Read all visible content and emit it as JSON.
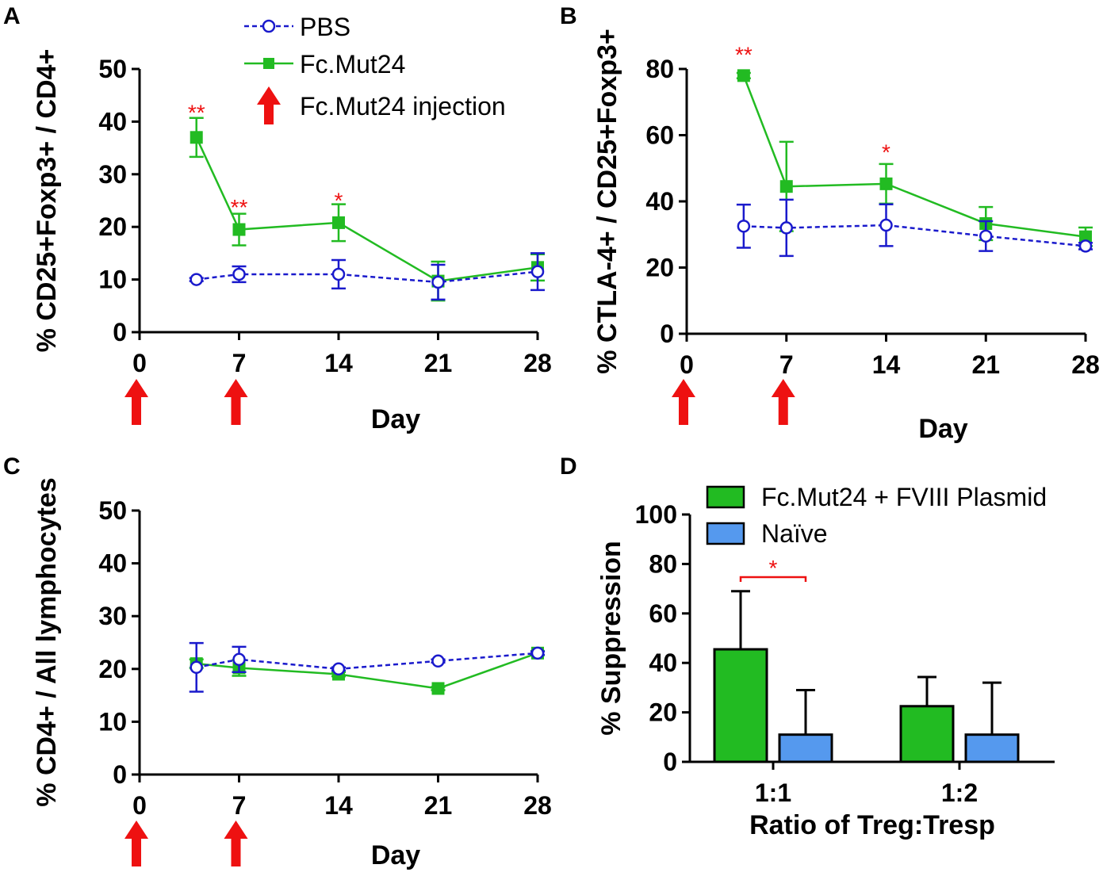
{
  "colors": {
    "pbs": "#1a1acc",
    "fc": "#22bb22",
    "arrow": "#ee1111",
    "sig": "#ee1111",
    "bar_naive": "#5599ee",
    "bar_fc": "#22bb22"
  },
  "legend_top": {
    "pbs": "PBS",
    "fc": "Fc.Mut24",
    "arrow": "Fc.Mut24 injection"
  },
  "legend_d": {
    "fc": "Fc.Mut24 + FVIII Plasmid",
    "naive": "Naïve"
  },
  "chart_data": [
    {
      "panel": "A",
      "type": "line",
      "xlabel": "Day",
      "ylabel": "% CD25+Foxp3+ / CD4+",
      "xticks": [
        0,
        7,
        14,
        21,
        28
      ],
      "yticks": [
        0,
        10,
        20,
        30,
        40,
        50
      ],
      "xlim": [
        0,
        28
      ],
      "ylim": [
        0,
        50
      ],
      "injections": [
        0,
        7
      ],
      "series": [
        {
          "name": "PBS",
          "x": [
            4,
            7,
            14,
            21,
            28
          ],
          "y": [
            10,
            11,
            11,
            9.5,
            11.5
          ],
          "err": [
            0.3,
            1.5,
            2.7,
            3.3,
            3.5
          ]
        },
        {
          "name": "Fc.Mut24",
          "x": [
            4,
            7,
            14,
            21,
            28
          ],
          "y": [
            37,
            19.5,
            20.8,
            9.7,
            12.3
          ],
          "err": [
            3.7,
            3.0,
            3.5,
            3.7,
            2.5
          ]
        }
      ],
      "significance": [
        {
          "x": 4,
          "label": "**",
          "y": 41.5
        },
        {
          "x": 7,
          "label": "**",
          "y": 23.5
        },
        {
          "x": 14,
          "label": "*",
          "y": 24.8
        }
      ]
    },
    {
      "panel": "B",
      "type": "line",
      "xlabel": "Day",
      "ylabel": "% CTLA-4+ / CD25+Foxp3+",
      "xticks": [
        0,
        7,
        14,
        21,
        28
      ],
      "yticks": [
        0,
        20,
        40,
        60,
        80
      ],
      "xlim": [
        0,
        28
      ],
      "ylim": [
        0,
        80
      ],
      "injections": [
        0,
        7
      ],
      "series": [
        {
          "name": "PBS",
          "x": [
            4,
            7,
            14,
            21,
            28
          ],
          "y": [
            32.5,
            32,
            32.8,
            29.5,
            26.5
          ],
          "err": [
            6.5,
            8.5,
            6.3,
            4.5,
            1.0
          ]
        },
        {
          "name": "Fc.Mut24",
          "x": [
            4,
            7,
            14,
            21,
            28
          ],
          "y": [
            78,
            44.5,
            45.3,
            33.3,
            29.3
          ],
          "err": [
            0.8,
            13.5,
            6.0,
            5.0,
            2.8
          ]
        }
      ],
      "significance": [
        {
          "x": 4,
          "label": "**",
          "y": 84
        },
        {
          "x": 14,
          "label": "*",
          "y": 54.5
        }
      ]
    },
    {
      "panel": "C",
      "type": "line",
      "xlabel": "Day",
      "ylabel": "% CD4+ / All lymphocytes",
      "xticks": [
        0,
        7,
        14,
        21,
        28
      ],
      "yticks": [
        0,
        10,
        20,
        30,
        40,
        50
      ],
      "xlim": [
        0,
        28
      ],
      "ylim": [
        0,
        50
      ],
      "injections": [
        0,
        7
      ],
      "series": [
        {
          "name": "PBS",
          "x": [
            4,
            7,
            14,
            21,
            28
          ],
          "y": [
            20.3,
            21.8,
            20,
            21.5,
            23
          ],
          "err": [
            4.6,
            2.4,
            0.3,
            0.3,
            0.3
          ]
        },
        {
          "name": "Fc.Mut24",
          "x": [
            4,
            7,
            14,
            21,
            28
          ],
          "y": [
            21,
            20.2,
            19,
            16.3,
            23
          ],
          "err": [
            0.8,
            1.5,
            0.4,
            0.3,
            0.4
          ]
        }
      ],
      "significance": []
    },
    {
      "panel": "D",
      "type": "bar",
      "xlabel": "Ratio of Treg:Tresp",
      "ylabel": "% Suppression",
      "categories": [
        "1:1",
        "1:2"
      ],
      "yticks": [
        0,
        20,
        40,
        60,
        80,
        100
      ],
      "ylim": [
        0,
        100
      ],
      "series": [
        {
          "name": "Fc.Mut24 + FVIII Plasmid",
          "values": [
            45.5,
            22.5
          ],
          "err": [
            23.5,
            11.8
          ]
        },
        {
          "name": "Naïve",
          "values": [
            11,
            11
          ],
          "err": [
            18,
            21
          ]
        }
      ],
      "significance": [
        {
          "label": "*",
          "between": [
            "1:1 Fc.Mut24 + FVIII Plasmid",
            "1:1 Naïve"
          ]
        }
      ]
    }
  ],
  "panels": [
    {
      "letter": "A"
    },
    {
      "letter": "B"
    },
    {
      "letter": "C"
    },
    {
      "letter": "D"
    }
  ]
}
